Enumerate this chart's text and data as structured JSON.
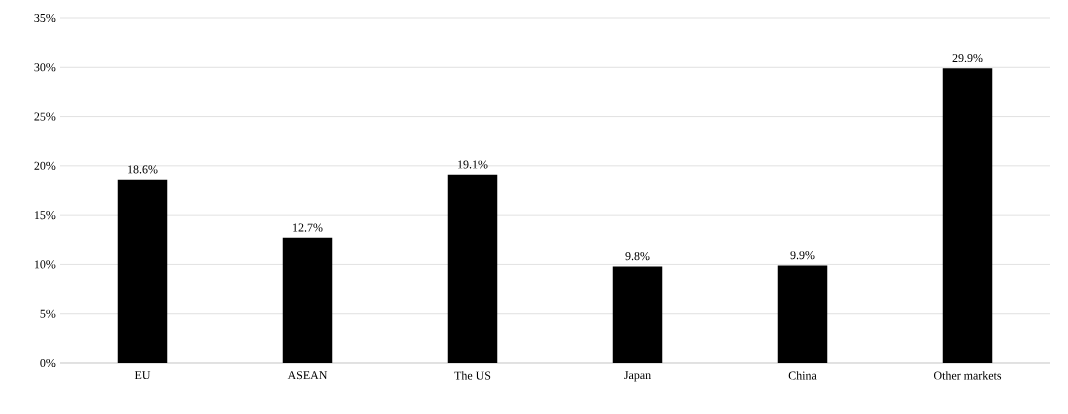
{
  "chart_data": {
    "type": "bar",
    "categories": [
      "EU",
      "ASEAN",
      "The US",
      "Japan",
      "China",
      "Other markets"
    ],
    "values": [
      18.6,
      12.7,
      19.1,
      9.8,
      9.9,
      29.9
    ],
    "value_labels": [
      "18.6%",
      "12.7%",
      "19.1%",
      "9.8%",
      "9.9%",
      "29.9%"
    ],
    "color": "#000000",
    "ylim": [
      0,
      35
    ],
    "yticks": [
      {
        "value": 0,
        "label": "0%"
      },
      {
        "value": 5,
        "label": "5%"
      },
      {
        "value": 10,
        "label": "10%"
      },
      {
        "value": 15,
        "label": "15%"
      },
      {
        "value": 20,
        "label": "20%"
      },
      {
        "value": 25,
        "label": "25%"
      },
      {
        "value": 30,
        "label": "30%"
      },
      {
        "value": 35,
        "label": "35%"
      }
    ],
    "grid": "y"
  }
}
